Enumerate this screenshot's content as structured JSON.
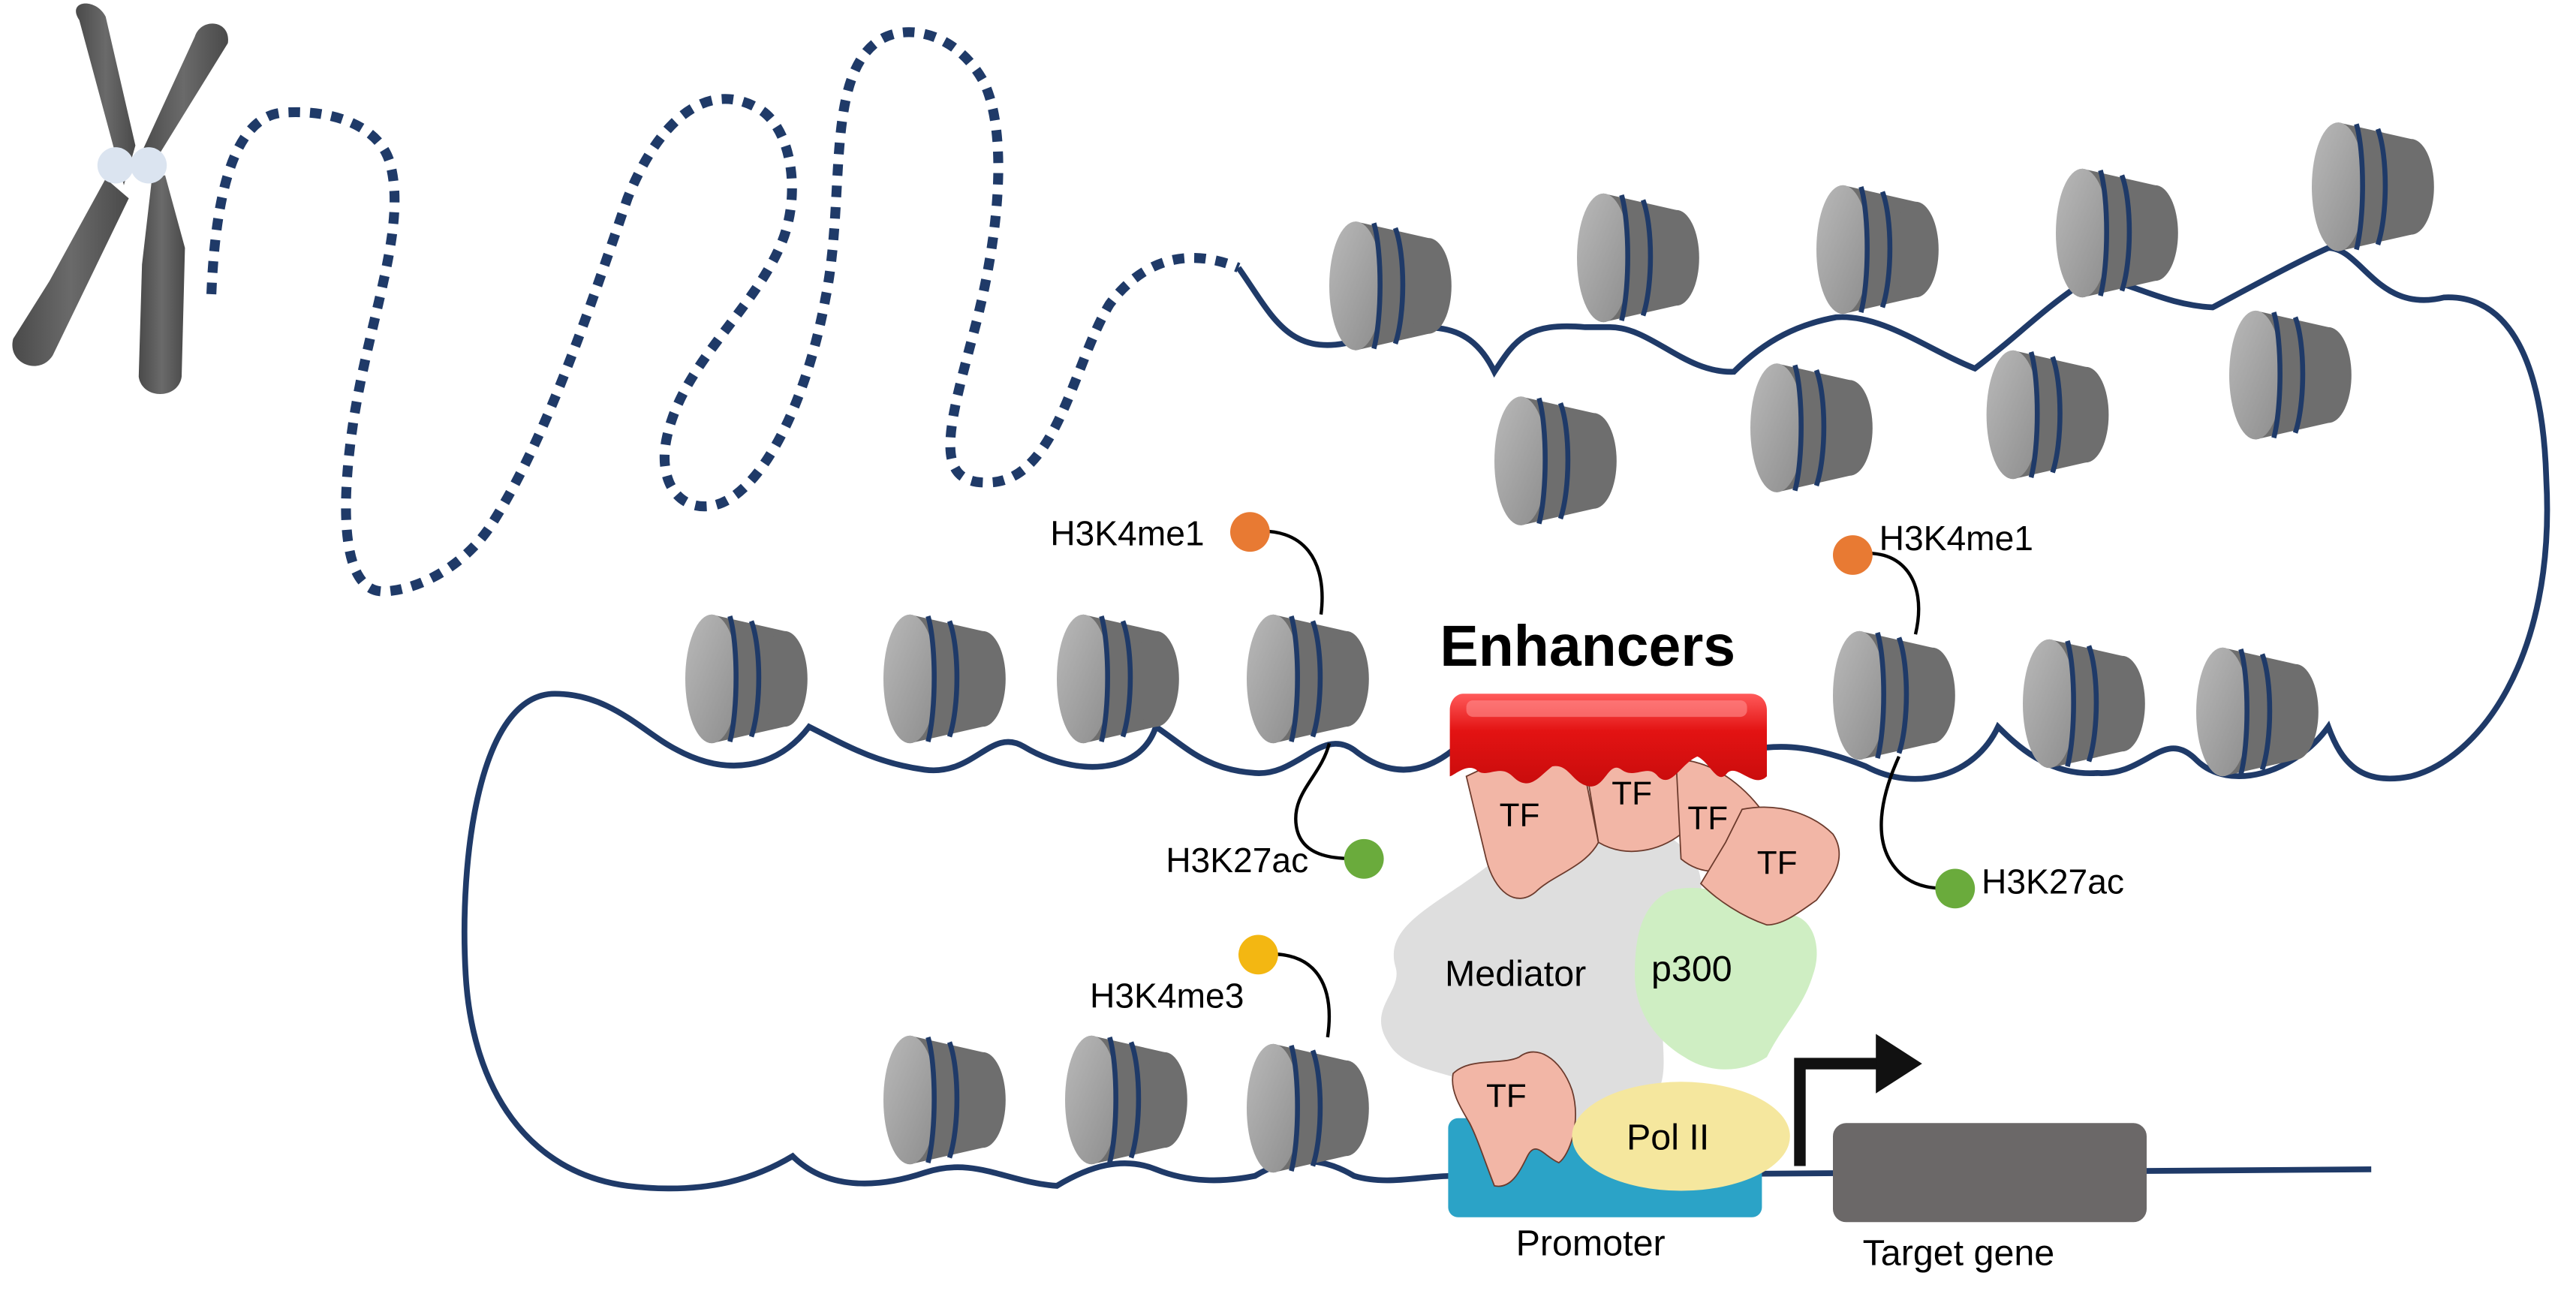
{
  "labels": {
    "enhancers": "Enhancers",
    "h3k4me1_left": "H3K4me1",
    "h3k4me1_right": "H3K4me1",
    "h3k27ac_left": "H3K27ac",
    "h3k27ac_right": "H3K27ac",
    "h3k4me3": "H3K4me3",
    "mediator": "Mediator",
    "p300": "p300",
    "pol2": "Pol II",
    "promoter": "Promoter",
    "target_gene": "Target gene",
    "tf": [
      "TF",
      "TF",
      "TF",
      "TF",
      "TF"
    ]
  },
  "colors": {
    "dna": "#1f3a68",
    "nucleosome_face": "#a3a3a3",
    "nucleosome_side": "#6e6e6e",
    "chromosome": "#5a5a5a",
    "enhancer": "#e31313",
    "tf": "#f2b6a6",
    "mediator": "#dedede",
    "p300": "#cfeec3",
    "pol2": "#f5e79e",
    "promoter": "#2ba3c7",
    "gene": "#6b6868",
    "h3k4me1": "#e87a33",
    "h3k27ac": "#6aab3c",
    "h3k4me3": "#f3b712"
  },
  "icons": {
    "chromosome": "chromosome-icon",
    "nucleosome": "nucleosome-icon",
    "arrow": "transcription-start-arrow-icon"
  }
}
